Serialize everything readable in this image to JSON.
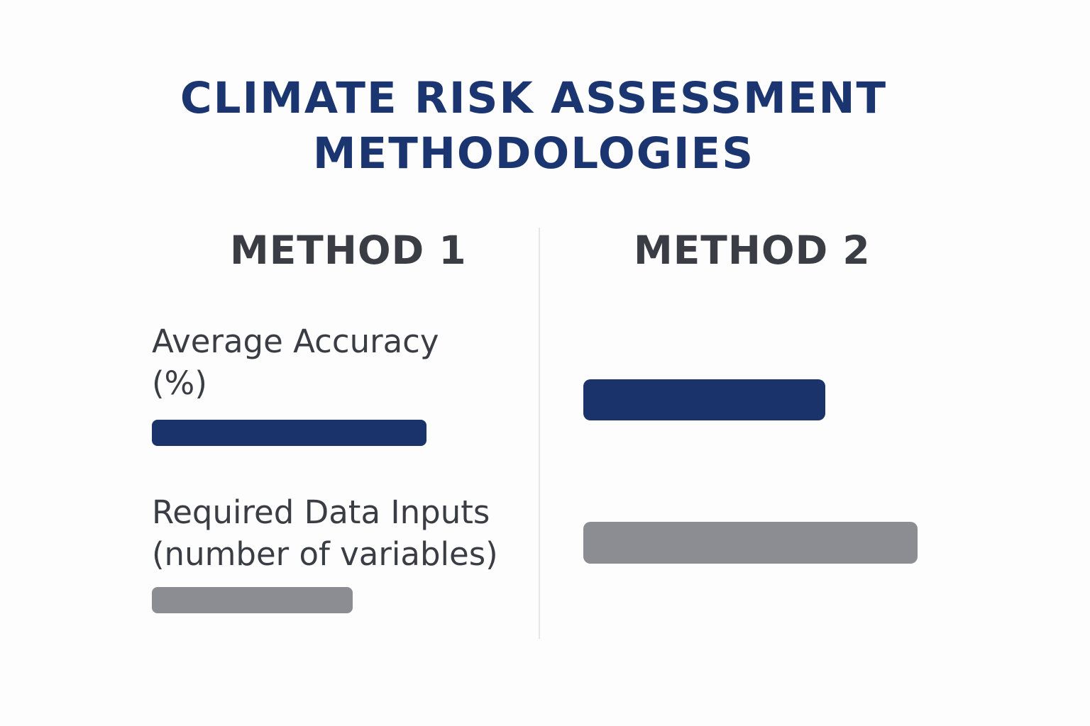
{
  "colors": {
    "title": "#1a3570",
    "heading": "#3a3d44",
    "label": "#3a3d44",
    "accuracy_bar": "#1a336b",
    "inputs_bar": "#8c8d92"
  },
  "chart_data": {
    "type": "bar",
    "orientation": "horizontal",
    "title_lines": [
      "CLIMATE RISK ASSESSMENT",
      "METHODOLOGIES"
    ],
    "methods": [
      "METHOD 1",
      "METHOD 2"
    ],
    "metrics": [
      {
        "label_lines": [
          "Average Accuracy",
          "(%)"
        ],
        "color": "#1a336b"
      },
      {
        "label_lines": [
          "Required Data Inputs",
          "(number of variables)"
        ],
        "color": "#8c8d92"
      }
    ],
    "values": [
      [
        387,
        341
      ],
      [
        283,
        471
      ]
    ],
    "value_note": "values are relative bar lengths; no axis or numeric labels are printed",
    "axis": false,
    "grid": false,
    "legend": "none"
  }
}
